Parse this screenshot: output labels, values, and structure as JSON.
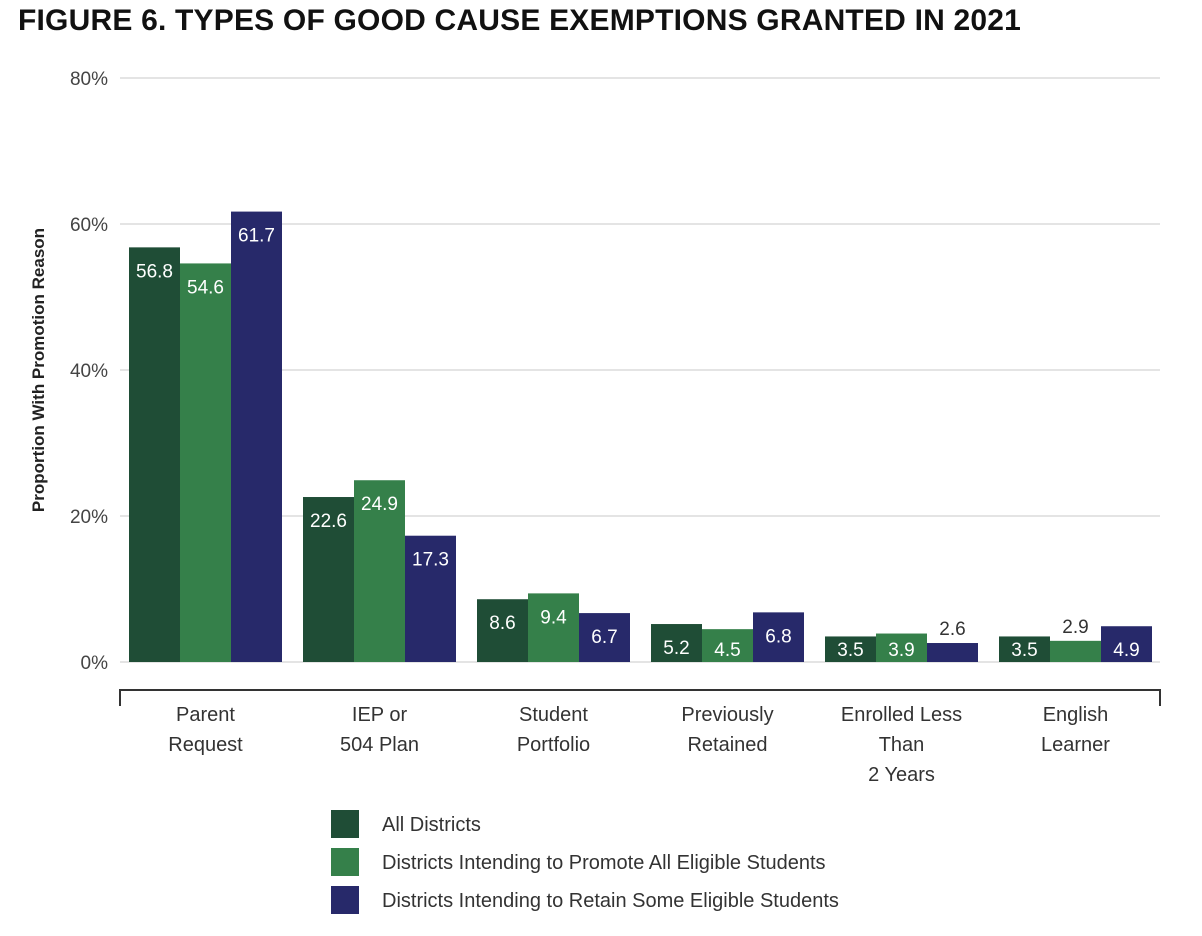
{
  "title": "FIGURE 6. TYPES OF GOOD CAUSE EXEMPTIONS GRANTED IN 2021",
  "chart_data": {
    "type": "bar",
    "title": "FIGURE 6. TYPES OF GOOD CAUSE EXEMPTIONS GRANTED IN 2021",
    "xlabel": "",
    "ylabel": "Proportion With Promotion Reason",
    "ylim": [
      0,
      80
    ],
    "yticks": [
      0,
      20,
      40,
      60,
      80
    ],
    "ytick_labels": [
      "0%",
      "20%",
      "40%",
      "60%",
      "80%"
    ],
    "grid": true,
    "legend_placement": "bottom",
    "categories": [
      [
        "Parent",
        "Request"
      ],
      [
        "IEP or",
        "504 Plan"
      ],
      [
        "Student",
        "Portfolio"
      ],
      [
        "Previously",
        "Retained"
      ],
      [
        "Enrolled Less",
        "Than",
        "2 Years"
      ],
      [
        "English",
        "Learner"
      ]
    ],
    "series": [
      {
        "name": "All Districts",
        "color": "#1f4d36",
        "values": [
          56.8,
          22.6,
          8.6,
          5.2,
          3.5,
          3.5
        ]
      },
      {
        "name": "Districts Intending to Promote All Eligible Students",
        "color": "#35804a",
        "values": [
          54.6,
          24.9,
          9.4,
          4.5,
          3.9,
          2.9
        ]
      },
      {
        "name": "Districts Intending to Retain Some Eligible Students",
        "color": "#27296a",
        "values": [
          61.7,
          17.3,
          6.7,
          6.8,
          2.6,
          4.9
        ]
      }
    ]
  }
}
